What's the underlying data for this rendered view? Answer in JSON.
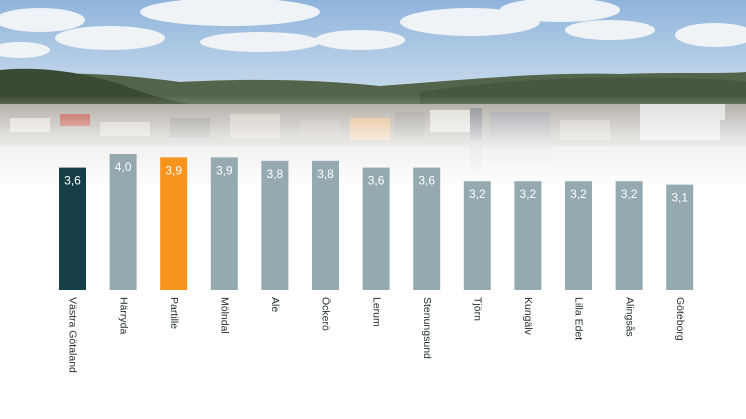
{
  "chart_data": {
    "type": "bar",
    "categories": [
      "Västra Götaland",
      "Härryda",
      "Partille",
      "Mölndal",
      "Ale",
      "Öckerö",
      "Lerum",
      "Stenungsund",
      "Tjörn",
      "Kungälv",
      "Lilla Edet",
      "Alingsås",
      "Göteborg"
    ],
    "values": [
      3.6,
      4.0,
      3.9,
      3.9,
      3.8,
      3.8,
      3.6,
      3.6,
      3.2,
      3.2,
      3.2,
      3.2,
      3.1
    ],
    "value_labels": [
      "3,6",
      "4,0",
      "3,9",
      "3,9",
      "3,8",
      "3,8",
      "3,6",
      "3,6",
      "3,2",
      "3,2",
      "3,2",
      "3,2",
      "3,1"
    ],
    "highlight": {
      "Västra Götaland": "#173f47",
      "Partille": "#f7941d"
    },
    "default_color": "#95a9b1",
    "value_label_color": "#ffffff",
    "category_label_color": "#1f2a2e",
    "ylim": [
      0,
      4.2
    ],
    "grid": false,
    "title": "",
    "xlabel": "",
    "ylabel": ""
  },
  "background": {
    "sky_color": "#a9c7e6",
    "hill_color": "#3a4a34",
    "city_color": "#a9a49b"
  }
}
